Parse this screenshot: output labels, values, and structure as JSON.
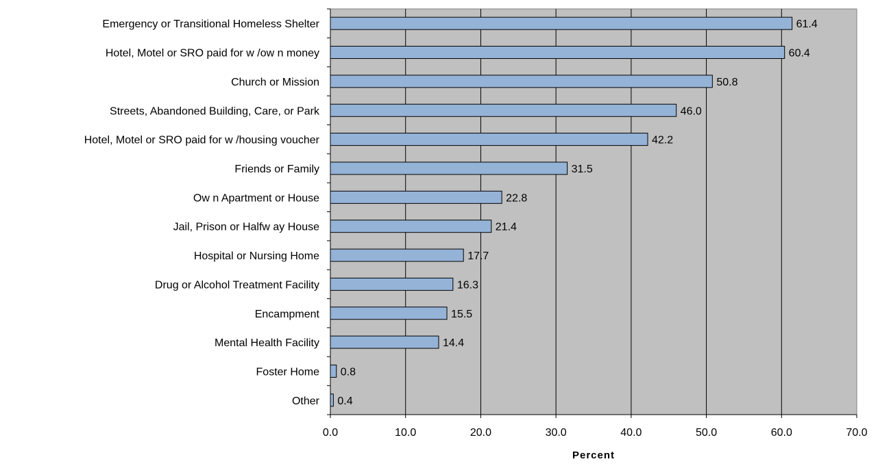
{
  "chart_data": {
    "type": "bar",
    "orientation": "horizontal",
    "categories": [
      "Emergency or Transitional Homeless Shelter",
      "Hotel, Motel or SRO paid for w /ow n money",
      "Church or Mission",
      "Streets, Abandoned Building, Care, or Park",
      "Hotel, Motel or SRO paid for w /housing voucher",
      "Friends or Family",
      "Ow n Apartment or House",
      "Jail, Prison or Halfw ay House",
      "Hospital or Nursing Home",
      "Drug or Alcohol Treatment Facility",
      "Encampment",
      "Mental Health Facility",
      "Foster Home",
      "Other"
    ],
    "values": [
      61.4,
      60.4,
      50.8,
      46.0,
      42.2,
      31.5,
      22.8,
      21.4,
      17.7,
      16.3,
      15.5,
      14.4,
      0.8,
      0.4
    ],
    "value_labels": [
      "61.4",
      "60.4",
      "50.8",
      "46.0",
      "42.2",
      "31.5",
      "22.8",
      "21.4",
      "17.7",
      "16.3",
      "15.5",
      "14.4",
      "0.8",
      "0.4"
    ],
    "xlabel": "Percent",
    "ylabel": "",
    "xlim": [
      0,
      70
    ],
    "xticks": [
      0,
      10,
      20,
      30,
      40,
      50,
      60,
      70
    ],
    "xtick_labels": [
      "0.0",
      "10.0",
      "20.0",
      "30.0",
      "40.0",
      "50.0",
      "60.0",
      "70.0"
    ],
    "grid": "vertical",
    "legend": "none",
    "colors": {
      "bar_fill": "#95b3d7",
      "bar_stroke": "#000000",
      "plot_background": "#c0c0c0",
      "grid": "#000000"
    }
  }
}
